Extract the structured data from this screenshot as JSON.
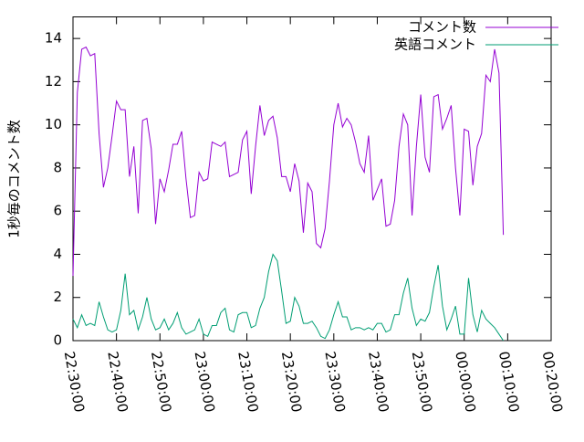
{
  "chart_data": {
    "type": "line",
    "ylabel": "1秒毎のコメント数",
    "x": [
      "22:30:00",
      "22:31:00",
      "22:32:00",
      "22:33:00",
      "22:34:00",
      "22:35:00",
      "22:36:00",
      "22:37:00",
      "22:38:00",
      "22:39:00",
      "22:40:00",
      "22:41:00",
      "22:42:00",
      "22:43:00",
      "22:44:00",
      "22:45:00",
      "22:46:00",
      "22:47:00",
      "22:48:00",
      "22:49:00",
      "22:50:00",
      "22:51:00",
      "22:52:00",
      "22:53:00",
      "22:54:00",
      "22:55:00",
      "22:56:00",
      "22:57:00",
      "22:58:00",
      "22:59:00",
      "23:00:00",
      "23:01:00",
      "23:02:00",
      "23:03:00",
      "23:04:00",
      "23:05:00",
      "23:06:00",
      "23:07:00",
      "23:08:00",
      "23:09:00",
      "23:10:00",
      "23:11:00",
      "23:12:00",
      "23:13:00",
      "23:14:00",
      "23:15:00",
      "23:16:00",
      "23:17:00",
      "23:18:00",
      "23:19:00",
      "23:20:00",
      "23:21:00",
      "23:22:00",
      "23:23:00",
      "23:24:00",
      "23:25:00",
      "23:26:00",
      "23:27:00",
      "23:28:00",
      "23:29:00",
      "23:30:00",
      "23:31:00",
      "23:32:00",
      "23:33:00",
      "23:34:00",
      "23:35:00",
      "23:36:00",
      "23:37:00",
      "23:38:00",
      "23:39:00",
      "23:40:00",
      "23:41:00",
      "23:42:00",
      "23:43:00",
      "23:44:00",
      "23:45:00",
      "23:46:00",
      "23:47:00",
      "23:48:00",
      "23:49:00",
      "23:50:00",
      "23:51:00",
      "23:52:00",
      "23:53:00",
      "23:54:00",
      "23:55:00",
      "23:56:00",
      "23:57:00",
      "23:58:00",
      "23:59:00",
      "00:00:00",
      "00:01:00",
      "00:02:00",
      "00:03:00",
      "00:04:00",
      "00:05:00",
      "00:06:00",
      "00:07:00",
      "00:08:00",
      "00:09:00"
    ],
    "series": [
      {
        "name": "コメント数",
        "color": "#9400d3",
        "values": [
          3.0,
          11.5,
          13.5,
          13.6,
          13.2,
          13.3,
          9.6,
          7.1,
          8.0,
          9.5,
          11.1,
          10.7,
          10.7,
          7.6,
          9.0,
          5.9,
          10.2,
          10.3,
          8.9,
          5.4,
          7.5,
          6.9,
          7.9,
          9.1,
          9.1,
          9.7,
          7.5,
          5.7,
          5.8,
          7.8,
          7.4,
          7.5,
          9.2,
          9.1,
          9.0,
          9.2,
          7.6,
          7.7,
          7.8,
          9.3,
          9.7,
          6.8,
          9.0,
          10.9,
          9.5,
          10.2,
          10.4,
          9.4,
          7.6,
          7.6,
          6.9,
          8.2,
          7.4,
          5.0,
          7.3,
          6.9,
          4.5,
          4.3,
          5.2,
          7.4,
          10.0,
          11.0,
          9.9,
          10.3,
          10.0,
          9.2,
          8.2,
          7.8,
          9.5,
          6.5,
          7.0,
          7.5,
          5.3,
          5.4,
          6.5,
          9.0,
          10.5,
          10.0,
          5.8,
          9.0,
          11.4,
          8.5,
          7.8,
          11.3,
          11.4,
          9.8,
          10.3,
          10.9,
          8.0,
          5.8,
          9.8,
          9.7,
          7.2,
          9.0,
          9.6,
          12.3,
          12.0,
          13.5,
          12.4,
          4.9
        ]
      },
      {
        "name": "英語コメント",
        "color": "#009e73",
        "values": [
          1.0,
          0.6,
          1.2,
          0.7,
          0.8,
          0.7,
          1.8,
          1.1,
          0.5,
          0.4,
          0.5,
          1.4,
          3.1,
          1.2,
          1.4,
          0.5,
          1.1,
          2.0,
          1.0,
          0.5,
          0.6,
          1.0,
          0.5,
          0.8,
          1.3,
          0.6,
          0.3,
          0.4,
          0.5,
          1.0,
          0.3,
          0.2,
          0.7,
          0.7,
          1.3,
          1.5,
          0.5,
          0.4,
          1.2,
          1.3,
          1.3,
          0.6,
          0.7,
          1.5,
          2.0,
          3.2,
          4.0,
          3.7,
          2.3,
          0.8,
          0.9,
          2.0,
          1.6,
          0.8,
          0.8,
          0.9,
          0.6,
          0.2,
          0.1,
          0.5,
          1.2,
          1.8,
          1.1,
          1.1,
          0.5,
          0.6,
          0.6,
          0.5,
          0.6,
          0.5,
          0.8,
          0.8,
          0.4,
          0.5,
          1.2,
          1.2,
          2.2,
          2.9,
          1.5,
          0.7,
          1.0,
          0.9,
          1.3,
          2.5,
          3.5,
          1.6,
          0.5,
          1.0,
          1.6,
          0.3,
          0.3,
          2.9,
          1.2,
          0.4,
          1.4,
          1.0,
          0.8,
          0.6,
          0.3,
          0.0
        ]
      }
    ],
    "xlim": [
      "22:30:00",
      "00:20:00"
    ],
    "xticks": [
      "22:30:00",
      "22:40:00",
      "22:50:00",
      "23:00:00",
      "23:10:00",
      "23:20:00",
      "23:30:00",
      "23:40:00",
      "23:50:00",
      "00:00:00",
      "00:10:00",
      "00:20:00"
    ],
    "ylim": [
      0,
      15
    ],
    "yticks": [
      0,
      2,
      4,
      6,
      8,
      10,
      12,
      14
    ],
    "legend": "top-right"
  }
}
